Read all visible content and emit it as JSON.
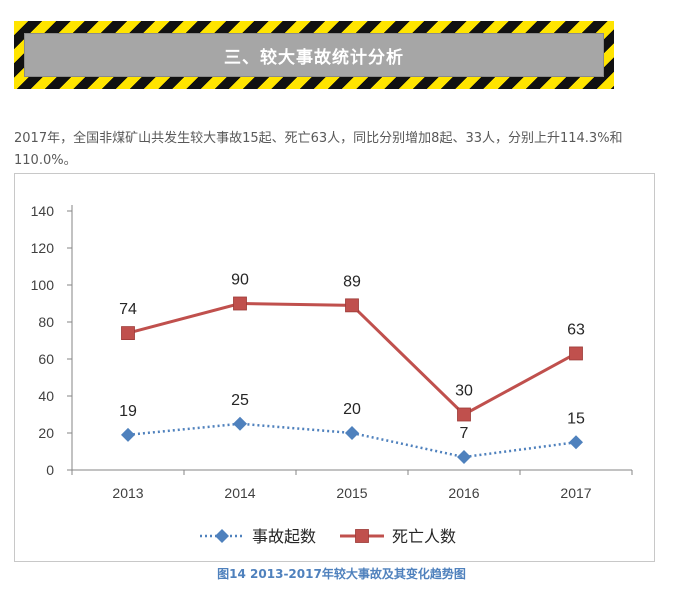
{
  "section_title": "三、较大事故统计分析",
  "intro_text": "2017年，全国非煤矿山共发生较大事故15起、死亡63人，同比分别增加8起、33人，分别上升114.3%和110.0%。",
  "caption": "图14  2013-2017年较大事故及其变化趋势图",
  "colors": {
    "accidents": "#4f81bd",
    "deaths": "#c0504d",
    "banner_yellow": "#ffe400",
    "banner_gray": "#a6a6a6"
  },
  "chart_data": {
    "type": "line",
    "categories": [
      "2013",
      "2014",
      "2015",
      "2016",
      "2017"
    ],
    "series": [
      {
        "name": "事故起数",
        "values": [
          19,
          25,
          20,
          7,
          15
        ],
        "color": "#4f81bd",
        "line": "dotted",
        "marker": "diamond"
      },
      {
        "name": "死亡人数",
        "values": [
          74,
          90,
          89,
          30,
          63
        ],
        "color": "#c0504d",
        "line": "solid",
        "marker": "square"
      }
    ],
    "ylim": [
      0,
      140
    ],
    "yticks": [
      0,
      20,
      40,
      60,
      80,
      100,
      120,
      140
    ],
    "grid": false,
    "legend": "bottom"
  }
}
